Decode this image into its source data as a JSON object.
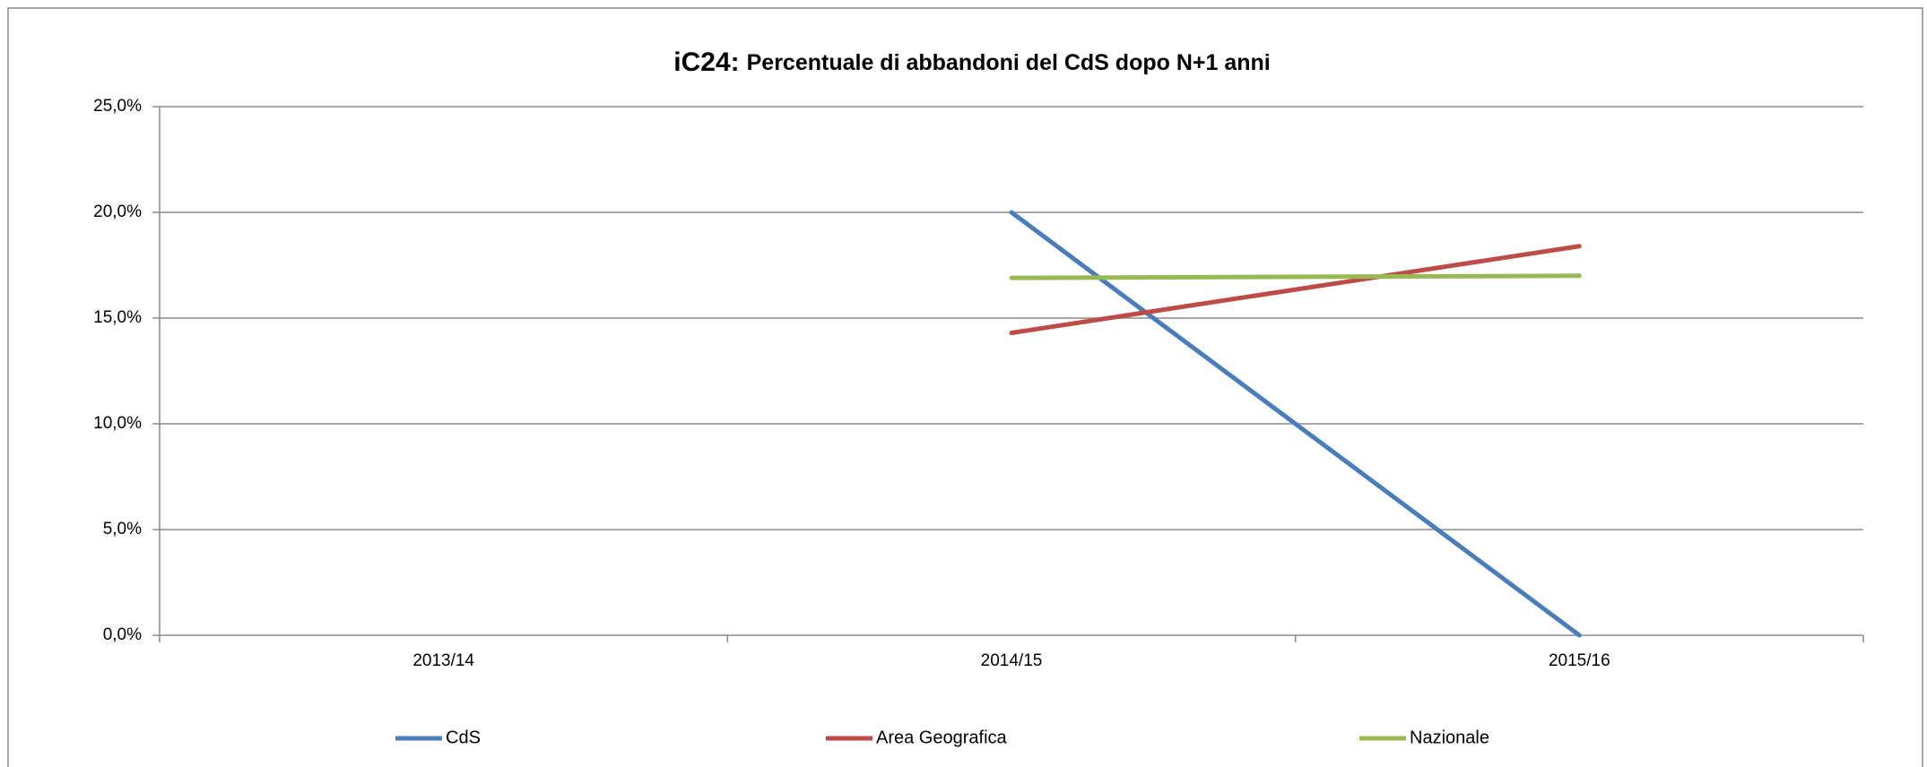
{
  "chart_data": {
    "type": "line",
    "title_code": "iC24:",
    "title": "Percentuale di abbandoni del CdS dopo N+1 anni",
    "categories": [
      "2013/14",
      "2014/15",
      "2015/16"
    ],
    "series": [
      {
        "name": "CdS",
        "color": "#4a7ebb",
        "values": [
          null,
          20.0,
          0.0
        ]
      },
      {
        "name": "Area Geografica",
        "color": "#be4b48",
        "values": [
          null,
          14.3,
          18.4
        ]
      },
      {
        "name": "Nazionale",
        "color": "#98b954",
        "values": [
          null,
          16.9,
          17.0
        ]
      }
    ],
    "ylim": [
      0,
      25
    ],
    "yticks": [
      {
        "value": 0,
        "label": "0,0%"
      },
      {
        "value": 5,
        "label": "5,0%"
      },
      {
        "value": 10,
        "label": "10,0%"
      },
      {
        "value": 15,
        "label": "15,0%"
      },
      {
        "value": 20,
        "label": "20,0%"
      },
      {
        "value": 25,
        "label": "25,0%"
      }
    ],
    "grid": true,
    "legend": "bottom"
  }
}
